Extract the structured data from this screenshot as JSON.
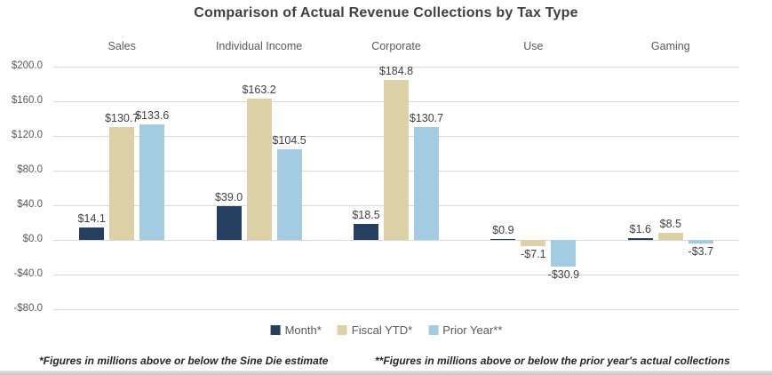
{
  "chart_data": {
    "type": "bar",
    "title": "Comparison of Actual Revenue Collections by Tax Type",
    "categories": [
      "Sales",
      "Individual Income",
      "Corporate",
      "Use",
      "Gaming"
    ],
    "series": [
      {
        "name": "Month*",
        "color": "#243F60",
        "values": [
          14.1,
          39.0,
          18.5,
          0.9,
          1.6
        ],
        "labels": [
          "$14.1",
          "$39.0",
          "$18.5",
          "$0.9",
          "$1.6"
        ]
      },
      {
        "name": "Fiscal YTD*",
        "color": "#DDD1A7",
        "values": [
          130.7,
          163.2,
          184.8,
          -7.1,
          8.5
        ],
        "labels": [
          "$130.7",
          "$163.2",
          "$184.8",
          "-$7.1",
          "$8.5"
        ]
      },
      {
        "name": "Prior Year**",
        "color": "#A3CBE2",
        "values": [
          133.6,
          104.5,
          130.7,
          -30.9,
          -3.7
        ],
        "labels": [
          "$133.6",
          "$104.5",
          "$130.7",
          "-$30.9",
          "-$3.7"
        ]
      }
    ],
    "y_axis": {
      "min": -80,
      "max": 200,
      "step": 40,
      "tick_labels": [
        "$200.0",
        "$160.0",
        "$120.0",
        "$80.0",
        "$40.0",
        "$0.0",
        "-$40.0",
        "-$80.0"
      ]
    },
    "grid": true,
    "legend_position": "bottom"
  },
  "footnotes": [
    "*Figures in millions above or below the Sine Die estimate",
    "**Figures in millions above or below the prior year's actual collections"
  ],
  "colors": {
    "title_text": "#404040",
    "axis_text": "#595959",
    "gridline": "#d9d9d9",
    "footnote_text": "#262626"
  }
}
